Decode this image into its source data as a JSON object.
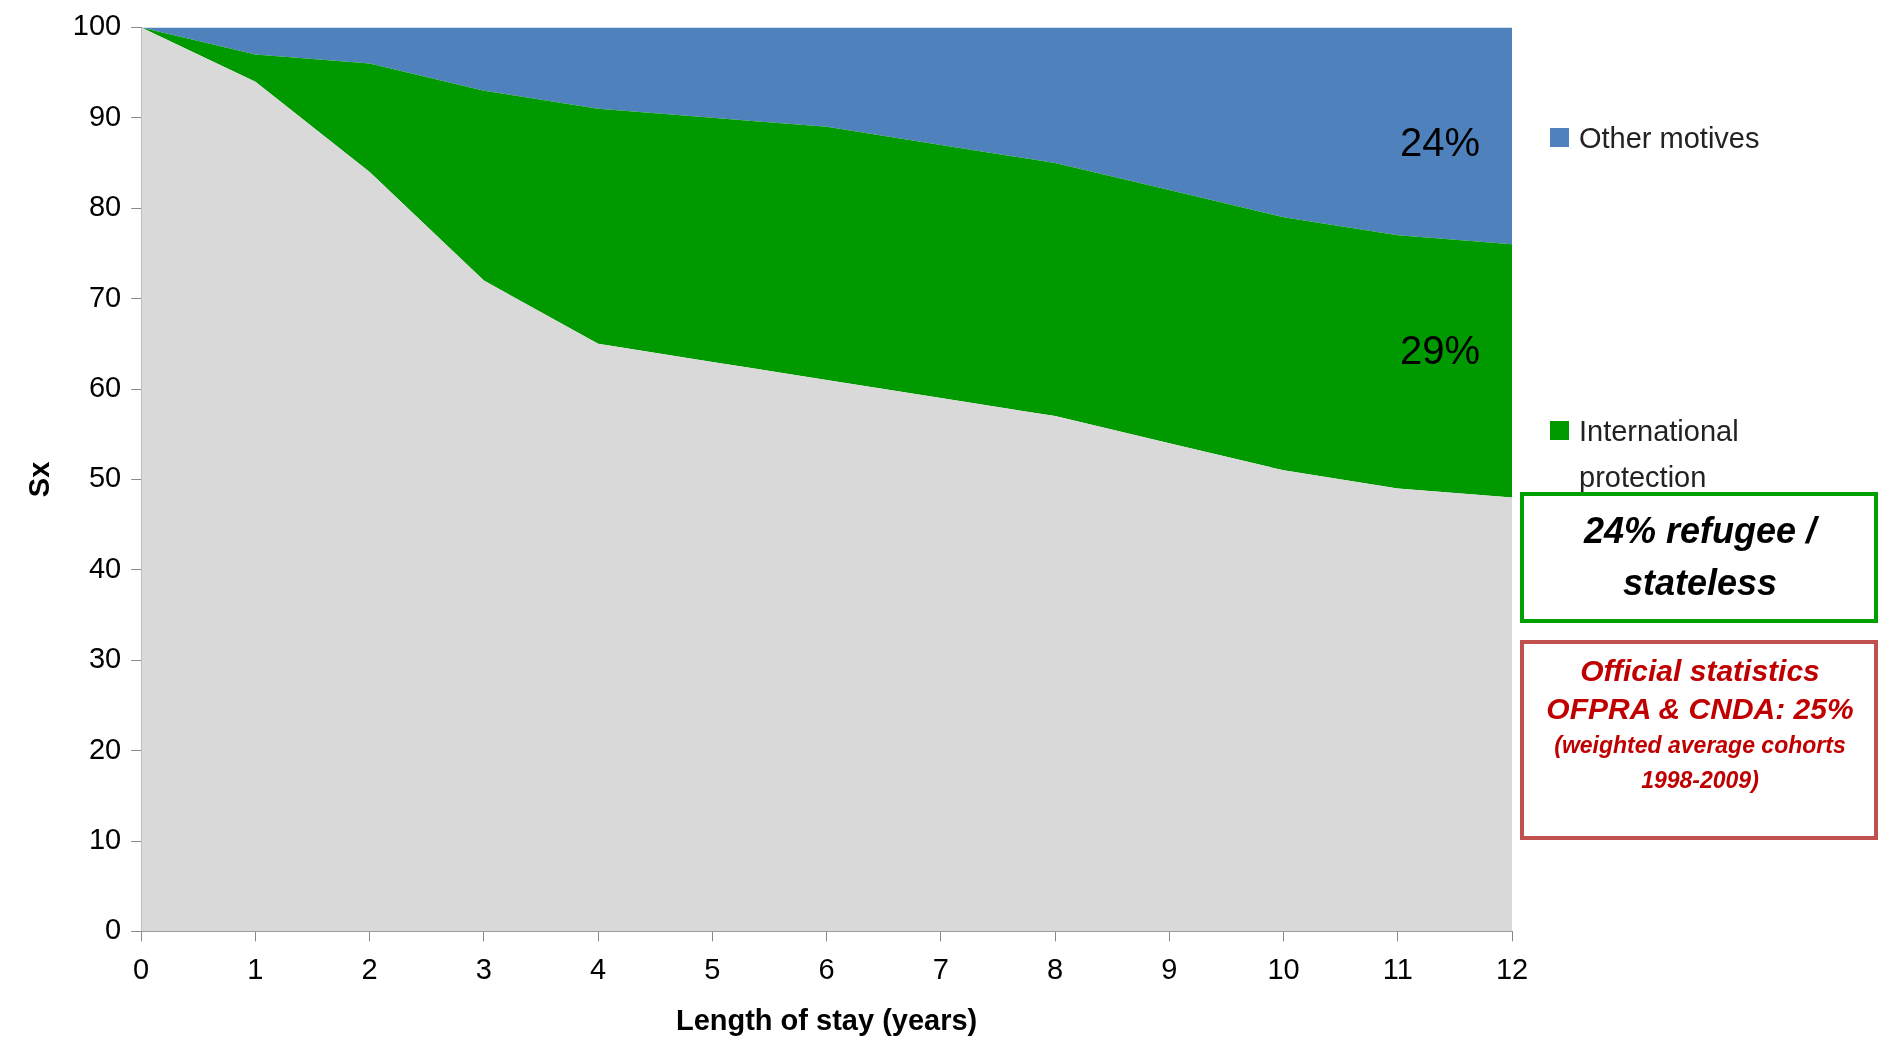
{
  "chart_data": {
    "type": "area",
    "stacked": true,
    "xlabel": "Length of stay (years)",
    "ylabel": "Sx",
    "x": [
      0,
      1,
      2,
      3,
      4,
      5,
      6,
      7,
      8,
      9,
      10,
      11,
      12
    ],
    "series": [
      {
        "color": "#d9d9d9",
        "values": [
          100,
          94,
          84,
          72,
          65,
          63,
          61,
          59,
          57,
          54,
          51,
          49,
          48
        ]
      },
      {
        "name": "International protection",
        "color": "#009900",
        "values": [
          0,
          3,
          12,
          21,
          26,
          27,
          28,
          28,
          28,
          28,
          28,
          28,
          28
        ]
      },
      {
        "name": "Other motives",
        "color": "#4f81bd",
        "values": [
          0,
          3,
          4,
          7,
          9,
          10,
          11,
          13,
          15,
          18,
          21,
          23,
          24
        ]
      }
    ],
    "xlim": [
      0,
      12
    ],
    "xticks": [
      0,
      1,
      2,
      3,
      4,
      5,
      6,
      7,
      8,
      9,
      10,
      11,
      12
    ],
    "ylim": [
      0,
      100
    ],
    "yticks": [
      0,
      10,
      20,
      30,
      40,
      50,
      60,
      70,
      80,
      90,
      100
    ],
    "grid": false,
    "legend": "right",
    "annotations": [
      "24%",
      "29%",
      "24% refugee / stateless",
      "Official statistics OFPRA & CNDA: 25%",
      "(weighted average cohorts 1998-2009)"
    ]
  }
}
